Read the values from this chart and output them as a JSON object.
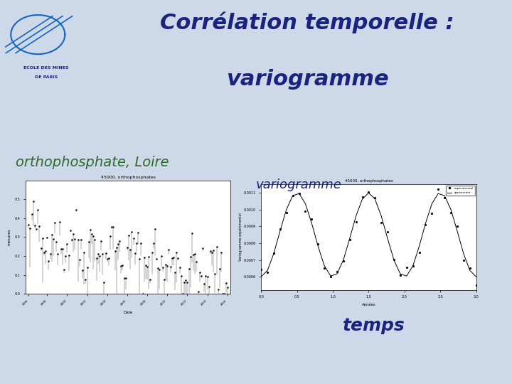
{
  "bg_color": "#cdd9e8",
  "title_line1": "Corrélation temporelle :",
  "title_line2": "variogramme",
  "title_color": "#1a237e",
  "title_fontsize": 22,
  "label1": "orthophosphate, Loire",
  "label1_color": "#2e6b2e",
  "label1_fontsize": 14,
  "label2": "variogramme",
  "label2_color": "#1a237e",
  "label2_fontsize": 13,
  "label3": "temps",
  "label3_color": "#1a237e",
  "label3_fontsize": 18,
  "logo_text1": "ECOLE DES MINES",
  "logo_text2": "DE PARIS",
  "chart1_title": "45000, orthophosphates",
  "chart2_title": "45000, orthophosphates",
  "chart1_xlabel": "Date",
  "chart1_ylabel": "mesures",
  "chart2_xlabel": "Années",
  "chart2_ylabel": "Variogramme expérimental"
}
